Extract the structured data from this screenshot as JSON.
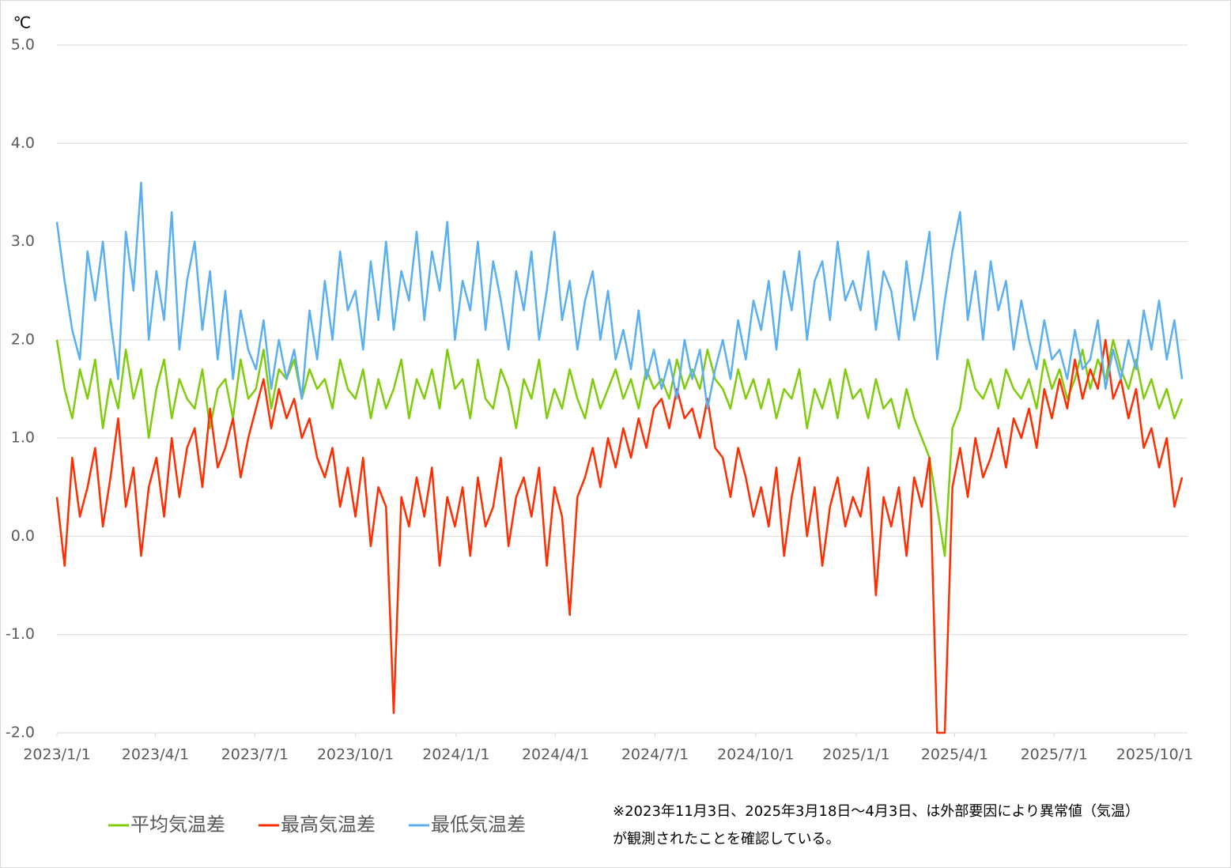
{
  "chart_data": {
    "type": "line",
    "y_unit": "℃",
    "x": [
      "2023/1/1",
      "2023/1/8",
      "2023/1/15",
      "2023/1/22",
      "2023/1/29",
      "2023/2/5",
      "2023/2/12",
      "2023/2/19",
      "2023/2/26",
      "2023/3/5",
      "2023/3/12",
      "2023/3/19",
      "2023/3/26",
      "2023/4/2",
      "2023/4/9",
      "2023/4/16",
      "2023/4/23",
      "2023/4/30",
      "2023/5/7",
      "2023/5/14",
      "2023/5/21",
      "2023/5/28",
      "2023/6/4",
      "2023/6/11",
      "2023/6/18",
      "2023/6/25",
      "2023/7/2",
      "2023/7/9",
      "2023/7/16",
      "2023/7/23",
      "2023/7/30",
      "2023/8/6",
      "2023/8/13",
      "2023/8/20",
      "2023/8/27",
      "2023/9/3",
      "2023/9/10",
      "2023/9/17",
      "2023/9/24",
      "2023/10/1",
      "2023/10/8",
      "2023/10/15",
      "2023/10/22",
      "2023/10/29",
      "2023/11/5",
      "2023/11/12",
      "2023/11/19",
      "2023/11/26",
      "2023/12/3",
      "2023/12/10",
      "2023/12/17",
      "2023/12/24",
      "2023/12/31",
      "2024/1/7",
      "2024/1/14",
      "2024/1/21",
      "2024/1/28",
      "2024/2/4",
      "2024/2/11",
      "2024/2/18",
      "2024/2/25",
      "2024/3/3",
      "2024/3/10",
      "2024/3/17",
      "2024/3/24",
      "2024/3/31",
      "2024/4/7",
      "2024/4/14",
      "2024/4/21",
      "2024/4/28",
      "2024/5/5",
      "2024/5/12",
      "2024/5/19",
      "2024/5/26",
      "2024/6/2",
      "2024/6/9",
      "2024/6/16",
      "2024/6/23",
      "2024/6/30",
      "2024/7/7",
      "2024/7/14",
      "2024/7/21",
      "2024/7/28",
      "2024/8/4",
      "2024/8/11",
      "2024/8/18",
      "2024/8/25",
      "2024/9/1",
      "2024/9/8",
      "2024/9/15",
      "2024/9/22",
      "2024/9/29",
      "2024/10/6",
      "2024/10/13",
      "2024/10/20",
      "2024/10/27",
      "2024/11/3",
      "2024/11/10",
      "2024/11/17",
      "2024/11/24",
      "2024/12/1",
      "2024/12/8",
      "2024/12/15",
      "2024/12/22",
      "2024/12/29",
      "2025/1/5",
      "2025/1/12",
      "2025/1/19",
      "2025/1/26",
      "2025/2/2",
      "2025/2/9",
      "2025/2/16",
      "2025/2/23",
      "2025/3/2",
      "2025/3/9",
      "2025/3/16",
      "2025/3/23",
      "2025/3/30",
      "2025/4/6",
      "2025/4/13",
      "2025/4/20",
      "2025/4/27",
      "2025/5/4",
      "2025/5/11",
      "2025/5/18",
      "2025/5/25",
      "2025/6/1",
      "2025/6/8",
      "2025/6/15",
      "2025/6/22",
      "2025/6/29",
      "2025/7/6",
      "2025/7/13",
      "2025/7/20",
      "2025/7/27",
      "2025/8/3",
      "2025/8/10",
      "2025/8/17",
      "2025/8/24",
      "2025/8/31",
      "2025/9/7",
      "2025/9/14",
      "2025/9/21",
      "2025/9/28",
      "2025/10/5",
      "2025/10/12",
      "2025/10/19",
      "2025/10/26"
    ],
    "series": [
      {
        "name": "平均気温差",
        "color": "#7fcc0a",
        "values": [
          2.0,
          1.5,
          1.2,
          1.7,
          1.4,
          1.8,
          1.1,
          1.6,
          1.3,
          1.9,
          1.4,
          1.7,
          1.0,
          1.5,
          1.8,
          1.2,
          1.6,
          1.4,
          1.3,
          1.7,
          1.1,
          1.5,
          1.6,
          1.2,
          1.8,
          1.4,
          1.5,
          1.9,
          1.3,
          1.7,
          1.6,
          1.8,
          1.4,
          1.7,
          1.5,
          1.6,
          1.3,
          1.8,
          1.5,
          1.4,
          1.7,
          1.2,
          1.6,
          1.3,
          1.5,
          1.8,
          1.2,
          1.6,
          1.4,
          1.7,
          1.3,
          1.9,
          1.5,
          1.6,
          1.2,
          1.8,
          1.4,
          1.3,
          1.7,
          1.5,
          1.1,
          1.6,
          1.4,
          1.8,
          1.2,
          1.5,
          1.3,
          1.7,
          1.4,
          1.2,
          1.6,
          1.3,
          1.5,
          1.7,
          1.4,
          1.6,
          1.3,
          1.7,
          1.5,
          1.6,
          1.4,
          1.8,
          1.5,
          1.7,
          1.5,
          1.9,
          1.6,
          1.5,
          1.3,
          1.7,
          1.4,
          1.6,
          1.3,
          1.6,
          1.2,
          1.5,
          1.4,
          1.7,
          1.1,
          1.5,
          1.3,
          1.6,
          1.2,
          1.7,
          1.4,
          1.5,
          1.2,
          1.6,
          1.3,
          1.4,
          1.1,
          1.5,
          1.2,
          1.0,
          0.8,
          0.3,
          -0.2,
          1.1,
          1.3,
          1.8,
          1.5,
          1.4,
          1.6,
          1.3,
          1.7,
          1.5,
          1.4,
          1.6,
          1.3,
          1.8,
          1.5,
          1.7,
          1.4,
          1.6,
          1.9,
          1.5,
          1.8,
          1.6,
          2.0,
          1.7,
          1.5,
          1.8,
          1.4,
          1.6,
          1.3,
          1.5,
          1.2,
          1.4
        ]
      },
      {
        "name": "最高気温差",
        "color": "#ff2d00",
        "values": [
          0.4,
          -0.3,
          0.8,
          0.2,
          0.5,
          0.9,
          0.1,
          0.6,
          1.2,
          0.3,
          0.7,
          -0.2,
          0.5,
          0.8,
          0.2,
          1.0,
          0.4,
          0.9,
          1.1,
          0.5,
          1.3,
          0.7,
          0.9,
          1.2,
          0.6,
          1.0,
          1.3,
          1.6,
          1.1,
          1.5,
          1.2,
          1.4,
          1.0,
          1.2,
          0.8,
          0.6,
          0.9,
          0.3,
          0.7,
          0.2,
          0.8,
          -0.1,
          0.5,
          0.3,
          -1.8,
          0.4,
          0.1,
          0.6,
          0.2,
          0.7,
          -0.3,
          0.4,
          0.1,
          0.5,
          -0.2,
          0.6,
          0.1,
          0.3,
          0.8,
          -0.1,
          0.4,
          0.6,
          0.2,
          0.7,
          -0.3,
          0.5,
          0.2,
          -0.8,
          0.4,
          0.6,
          0.9,
          0.5,
          1.0,
          0.7,
          1.1,
          0.8,
          1.2,
          0.9,
          1.3,
          1.4,
          1.1,
          1.5,
          1.2,
          1.3,
          1.0,
          1.4,
          0.9,
          0.8,
          0.4,
          0.9,
          0.6,
          0.2,
          0.5,
          0.1,
          0.7,
          -0.2,
          0.4,
          0.8,
          0.0,
          0.5,
          -0.3,
          0.3,
          0.6,
          0.1,
          0.4,
          0.2,
          0.7,
          -0.6,
          0.4,
          0.1,
          0.5,
          -0.2,
          0.6,
          0.3,
          0.8,
          -2.0,
          -2.0,
          0.5,
          0.9,
          0.4,
          1.0,
          0.6,
          0.8,
          1.1,
          0.7,
          1.2,
          1.0,
          1.3,
          0.9,
          1.5,
          1.2,
          1.6,
          1.3,
          1.8,
          1.4,
          1.7,
          1.5,
          2.0,
          1.4,
          1.6,
          1.2,
          1.5,
          0.9,
          1.1,
          0.7,
          1.0,
          0.3,
          0.6
        ]
      },
      {
        "name": "最低気温差",
        "color": "#5aaff0",
        "values": [
          3.2,
          2.6,
          2.1,
          1.8,
          2.9,
          2.4,
          3.0,
          2.2,
          1.6,
          3.1,
          2.5,
          3.6,
          2.0,
          2.7,
          2.2,
          3.3,
          1.9,
          2.6,
          3.0,
          2.1,
          2.7,
          1.8,
          2.5,
          1.6,
          2.3,
          1.9,
          1.7,
          2.2,
          1.5,
          2.0,
          1.6,
          1.9,
          1.4,
          2.3,
          1.8,
          2.6,
          2.0,
          2.9,
          2.3,
          2.5,
          1.9,
          2.8,
          2.2,
          3.0,
          2.1,
          2.7,
          2.4,
          3.1,
          2.2,
          2.9,
          2.5,
          3.2,
          2.0,
          2.6,
          2.3,
          3.0,
          2.1,
          2.8,
          2.4,
          1.9,
          2.7,
          2.3,
          2.9,
          2.0,
          2.5,
          3.1,
          2.2,
          2.6,
          1.9,
          2.4,
          2.7,
          2.0,
          2.5,
          1.8,
          2.1,
          1.7,
          2.3,
          1.6,
          1.9,
          1.5,
          1.8,
          1.4,
          2.0,
          1.6,
          1.9,
          1.3,
          1.7,
          2.0,
          1.6,
          2.2,
          1.8,
          2.4,
          2.1,
          2.6,
          1.9,
          2.7,
          2.3,
          2.9,
          2.0,
          2.6,
          2.8,
          2.2,
          3.0,
          2.4,
          2.6,
          2.3,
          2.9,
          2.1,
          2.7,
          2.5,
          2.0,
          2.8,
          2.2,
          2.6,
          3.1,
          1.8,
          2.4,
          2.9,
          3.3,
          2.2,
          2.7,
          2.0,
          2.8,
          2.3,
          2.6,
          1.9,
          2.4,
          2.0,
          1.7,
          2.2,
          1.8,
          1.9,
          1.6,
          2.1,
          1.7,
          1.8,
          2.2,
          1.5,
          1.9,
          1.6,
          2.0,
          1.7,
          2.3,
          1.9,
          2.4,
          1.8,
          2.2,
          1.6
        ]
      }
    ],
    "xlim": [
      "2023/1/1",
      "2025/10/31"
    ],
    "xticks": [
      "2023/1/1",
      "2023/4/1",
      "2023/7/1",
      "2023/10/1",
      "2024/1/1",
      "2024/4/1",
      "2024/7/1",
      "2024/10/1",
      "2025/1/1",
      "2025/4/1",
      "2025/7/1",
      "2025/10/1"
    ],
    "ylim": [
      -2,
      5
    ],
    "yticks": [
      {
        "value": -2,
        "label": "-2.0"
      },
      {
        "value": -1,
        "label": "-1.0"
      },
      {
        "value": 0,
        "label": "0.0"
      },
      {
        "value": 1,
        "label": "1.0"
      },
      {
        "value": 2,
        "label": "2.0"
      },
      {
        "value": 3,
        "label": "3.0"
      },
      {
        "value": 4,
        "label": "4.0"
      },
      {
        "value": 5,
        "label": "5.0"
      }
    ],
    "grid": true,
    "note": [
      "※2023年11月3日、2025年3月18日～4月3日、は外部要因により異常値（気温）",
      "が観測されたことを確認している。"
    ]
  }
}
